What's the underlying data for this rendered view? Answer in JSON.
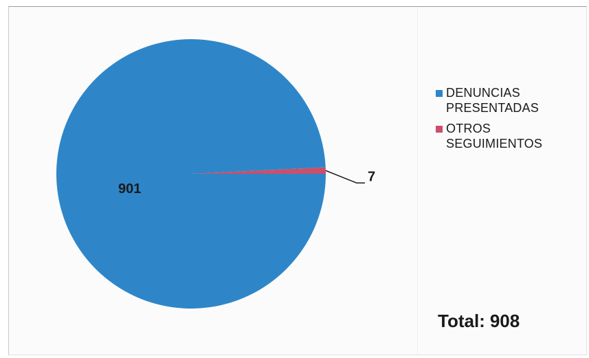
{
  "colors": {
    "denuncias": "#2E86C9",
    "otros": "#C9506A"
  },
  "chart_data": {
    "type": "pie",
    "categories": [
      "DENUNCIAS PRESENTADAS",
      "OTROS SEGUIMIENTOS"
    ],
    "values": [
      901,
      7
    ],
    "data_labels": [
      "901",
      "7"
    ],
    "legend_placement": "right"
  },
  "legend": {
    "items": [
      {
        "label_line1": "DENUNCIAS",
        "label_line2": "PRESENTADAS"
      },
      {
        "label_line1": "OTROS",
        "label_line2": "SEGUIMIENTOS"
      }
    ]
  },
  "total": {
    "label": "Total:",
    "value": "908"
  }
}
